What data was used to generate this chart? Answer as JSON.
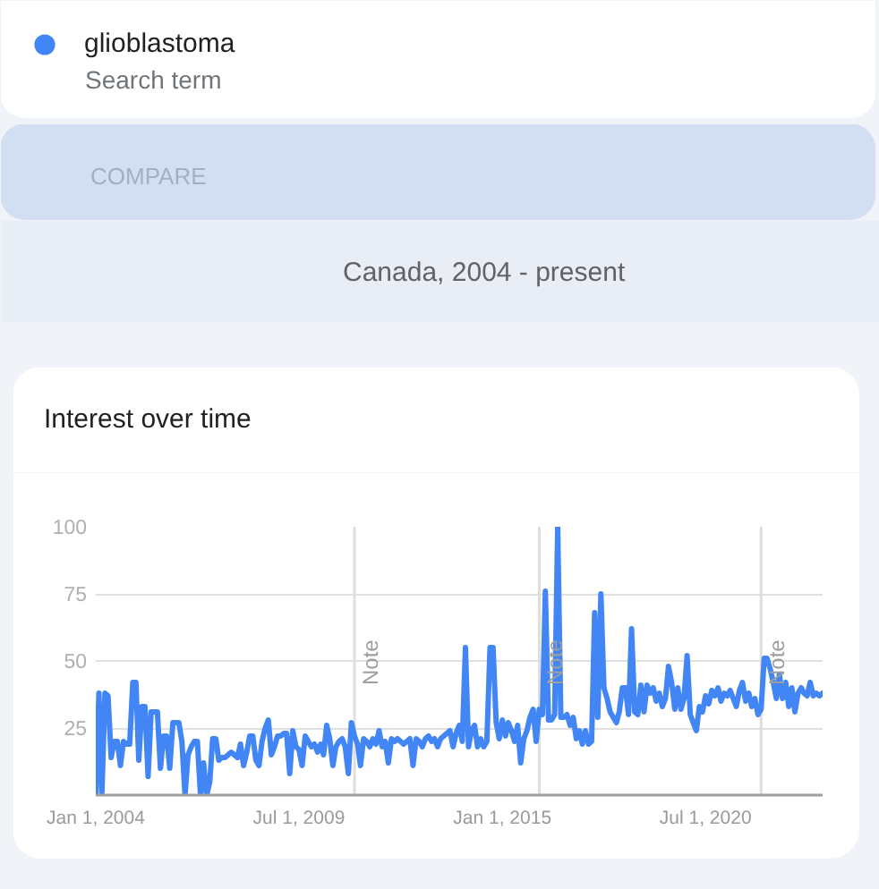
{
  "chart_data": {
    "type": "line",
    "title": "Interest over time",
    "subtitle": "Canada, 2004 - present",
    "annotations": [
      "Search term",
      "COMPARE"
    ],
    "x": [
      "2004-01",
      "2004-02",
      "2004-03",
      "2004-04",
      "2004-05",
      "2004-06",
      "2004-07",
      "2004-08",
      "2004-09",
      "2004-10",
      "2004-11",
      "2004-12",
      "2005-01",
      "2005-02",
      "2005-03",
      "2005-04",
      "2005-05",
      "2005-06",
      "2005-07",
      "2005-08",
      "2005-09",
      "2005-10",
      "2005-11",
      "2005-12",
      "2006-01",
      "2006-02",
      "2006-03",
      "2006-04",
      "2006-05",
      "2006-06",
      "2006-07",
      "2006-08",
      "2006-09",
      "2006-10",
      "2006-11",
      "2006-12",
      "2007-01",
      "2007-02",
      "2007-03",
      "2007-04",
      "2007-05",
      "2007-06",
      "2007-07",
      "2007-08",
      "2007-09",
      "2007-10",
      "2007-11",
      "2007-12",
      "2008-01",
      "2008-02",
      "2008-03",
      "2008-04",
      "2008-05",
      "2008-06",
      "2008-07",
      "2008-08",
      "2008-09",
      "2008-10",
      "2008-11",
      "2008-12",
      "2009-01",
      "2009-02",
      "2009-03",
      "2009-04",
      "2009-05",
      "2009-06",
      "2009-07",
      "2009-08",
      "2009-09",
      "2009-10",
      "2009-11",
      "2009-12",
      "2010-01",
      "2010-02",
      "2010-03",
      "2010-04",
      "2010-05",
      "2010-06",
      "2010-07",
      "2010-08",
      "2010-09",
      "2010-10",
      "2010-11",
      "2010-12",
      "2011-01",
      "2011-02",
      "2011-03",
      "2011-04",
      "2011-05",
      "2011-06",
      "2011-07",
      "2011-08",
      "2011-09",
      "2011-10",
      "2011-11",
      "2011-12",
      "2012-01",
      "2012-02",
      "2012-03",
      "2012-04",
      "2012-05",
      "2012-06",
      "2012-07",
      "2012-08",
      "2012-09",
      "2012-10",
      "2012-11",
      "2012-12",
      "2013-01",
      "2013-02",
      "2013-03",
      "2013-04",
      "2013-05",
      "2013-06",
      "2013-07",
      "2013-08",
      "2013-09",
      "2013-10",
      "2013-11",
      "2013-12",
      "2014-01",
      "2014-02",
      "2014-03",
      "2014-04",
      "2014-05",
      "2014-06",
      "2014-07",
      "2014-08",
      "2014-09",
      "2014-10",
      "2014-11",
      "2014-12",
      "2015-01",
      "2015-02",
      "2015-03",
      "2015-04",
      "2015-05",
      "2015-06",
      "2015-07",
      "2015-08",
      "2015-09",
      "2015-10",
      "2015-11",
      "2015-12",
      "2016-01",
      "2016-02",
      "2016-03",
      "2016-04",
      "2016-05",
      "2016-06",
      "2016-07",
      "2016-08",
      "2016-09",
      "2016-10",
      "2016-11",
      "2016-12",
      "2017-01",
      "2017-02",
      "2017-03",
      "2017-04",
      "2017-05",
      "2017-06",
      "2017-07",
      "2017-08",
      "2017-09",
      "2017-10",
      "2017-11",
      "2017-12",
      "2018-01",
      "2018-02",
      "2018-03",
      "2018-04",
      "2018-05",
      "2018-06",
      "2018-07",
      "2018-08",
      "2018-09",
      "2018-10",
      "2018-11",
      "2018-12",
      "2019-01",
      "2019-02",
      "2019-03",
      "2019-04",
      "2019-05",
      "2019-06",
      "2019-07",
      "2019-08",
      "2019-09",
      "2019-10",
      "2019-11",
      "2019-12",
      "2020-01",
      "2020-02",
      "2020-03",
      "2020-04",
      "2020-05",
      "2020-06",
      "2020-07",
      "2020-08",
      "2020-09",
      "2020-10",
      "2020-11",
      "2020-12",
      "2021-01",
      "2021-02",
      "2021-03",
      "2021-04",
      "2021-05",
      "2021-06",
      "2021-07",
      "2021-08",
      "2021-09",
      "2021-10",
      "2021-11",
      "2021-12",
      "2022-01",
      "2022-02",
      "2022-03",
      "2022-04",
      "2022-05",
      "2022-06",
      "2022-07",
      "2022-08",
      "2022-09",
      "2022-10",
      "2022-11",
      "2022-12",
      "2023-01",
      "2023-02",
      "2023-03",
      "2023-04",
      "2023-05",
      "2023-06",
      "2023-07",
      "2023-08",
      "2023-09"
    ],
    "series": [
      {
        "name": "glioblastoma",
        "color": "#4285f4",
        "values": [
          0,
          38,
          0,
          38,
          37,
          14,
          20,
          20,
          11,
          20,
          19,
          19,
          42,
          42,
          13,
          33,
          33,
          7,
          31,
          31,
          31,
          10,
          22,
          22,
          10,
          27,
          27,
          27,
          20,
          0,
          15,
          18,
          20,
          20,
          0,
          12,
          0,
          5,
          21,
          21,
          13,
          14,
          14,
          15,
          16,
          15,
          14,
          19,
          11,
          16,
          22,
          22,
          13,
          11,
          20,
          25,
          28,
          15,
          18,
          22,
          22,
          23,
          23,
          8,
          24,
          18,
          17,
          11,
          22,
          20,
          18,
          19,
          16,
          19,
          15,
          26,
          21,
          11,
          18,
          20,
          21,
          18,
          8,
          27,
          22,
          19,
          11,
          21,
          20,
          18,
          21,
          19,
          24,
          18,
          20,
          12,
          21,
          20,
          21,
          20,
          19,
          20,
          21,
          11,
          21,
          20,
          18,
          21,
          22,
          20,
          21,
          18,
          21,
          22,
          23,
          24,
          18,
          23,
          26,
          20,
          55,
          18,
          24,
          26,
          18,
          21,
          18,
          20,
          55,
          55,
          27,
          21,
          28,
          22,
          27,
          24,
          20,
          26,
          12,
          21,
          24,
          29,
          32,
          20,
          32,
          30,
          76,
          28,
          28,
          30,
          100,
          29,
          29,
          30,
          26,
          29,
          21,
          24,
          19,
          24,
          19,
          20,
          68,
          29,
          75,
          40,
          36,
          31,
          29,
          27,
          31,
          40,
          40,
          30,
          62,
          31,
          30,
          41,
          31,
          41,
          38,
          40,
          35,
          38,
          33,
          36,
          48,
          42,
          32,
          40,
          32,
          36,
          52,
          30,
          27,
          24,
          33,
          31,
          37,
          34,
          39,
          37,
          40,
          35,
          38,
          37,
          39,
          36,
          33,
          39,
          42,
          35,
          38,
          33,
          36,
          30,
          32,
          51,
          51,
          47,
          42,
          36,
          45,
          36,
          42,
          33,
          40,
          31,
          38,
          40,
          38,
          37,
          42,
          37,
          38,
          37,
          38
        ]
      }
    ],
    "xlim": [
      "2004-01-01",
      "2023-09-01"
    ],
    "xticks": [
      {
        "value": "2004-01-01",
        "label": "Jan 1, 2004"
      },
      {
        "value": "2009-07-01",
        "label": "Jul 1, 2009"
      },
      {
        "value": "2015-01-01",
        "label": "Jan 1, 2015"
      },
      {
        "value": "2020-07-01",
        "label": "Jul 1, 2020"
      }
    ],
    "ylim": [
      0,
      100
    ],
    "yticks": [
      25,
      50,
      75,
      100
    ],
    "ref_lines": [
      {
        "axis": "x",
        "value": "2011-01-01",
        "label": "Note"
      },
      {
        "axis": "x",
        "value": "2016-01-01",
        "label": "Note"
      },
      {
        "axis": "x",
        "value": "2022-01-01",
        "label": "Note"
      }
    ],
    "grid": "y",
    "legend": "top"
  }
}
